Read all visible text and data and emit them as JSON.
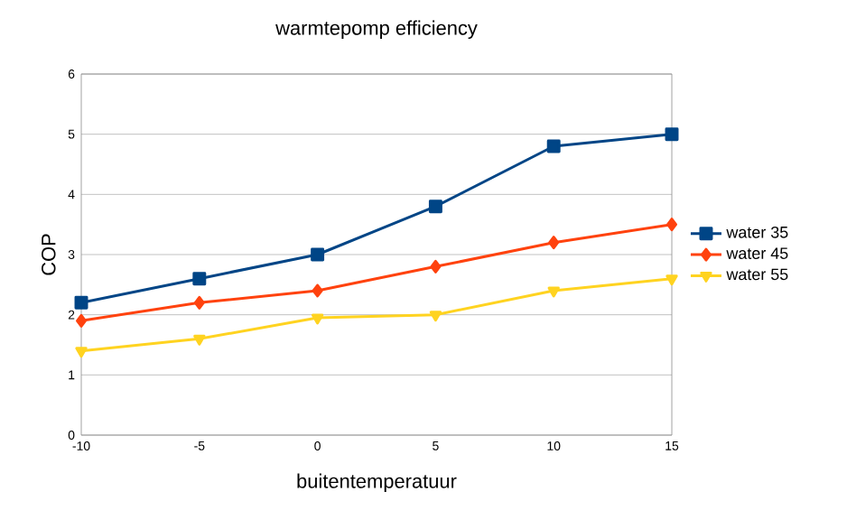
{
  "chart_data": {
    "type": "line",
    "title": "warmtepomp efficiency",
    "xlabel": "buitentemperatuur",
    "ylabel": "COP",
    "x": [
      -10,
      -5,
      0,
      5,
      10,
      15
    ],
    "xlim": [
      -10,
      15
    ],
    "xticks": [
      -10,
      -5,
      0,
      5,
      10,
      15
    ],
    "ylim": [
      0,
      6
    ],
    "yticks": [
      0,
      1,
      2,
      3,
      4,
      5,
      6
    ],
    "grid": "y",
    "legend": "right",
    "series": [
      {
        "name": "water 35",
        "color": "#004586",
        "marker": "square",
        "values": [
          2.2,
          2.6,
          3.0,
          3.8,
          4.8,
          5.0
        ]
      },
      {
        "name": "water 45",
        "color": "#ff420e",
        "marker": "diamond",
        "values": [
          1.9,
          2.2,
          2.4,
          2.8,
          3.2,
          3.5
        ]
      },
      {
        "name": "water 55",
        "color": "#ffd320",
        "marker": "triangle",
        "values": [
          1.4,
          1.6,
          1.95,
          2.0,
          2.4,
          2.6
        ]
      }
    ]
  }
}
